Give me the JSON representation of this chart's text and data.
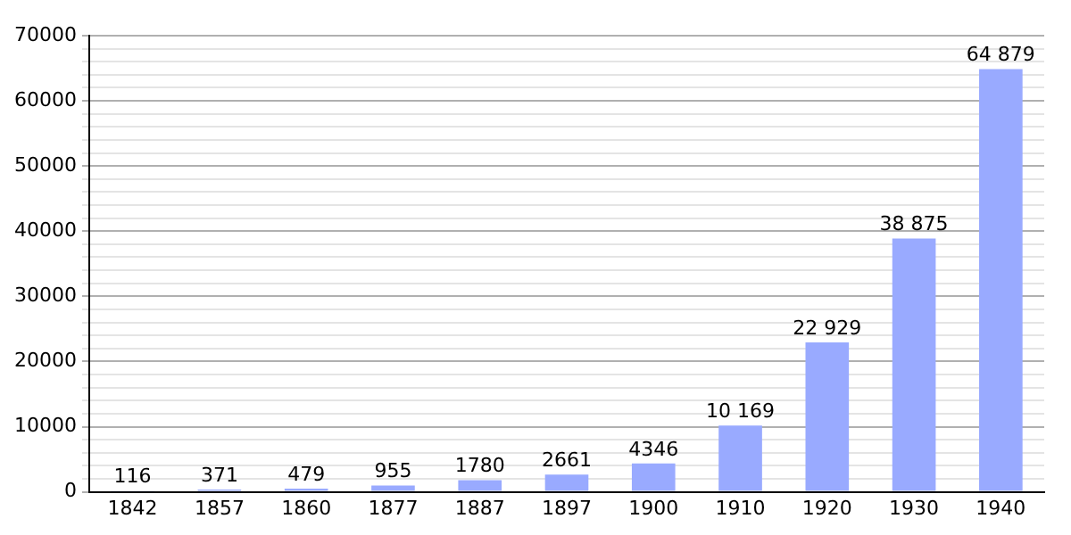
{
  "chart_data": {
    "type": "bar",
    "categories": [
      "1842",
      "1857",
      "1860",
      "1877",
      "1887",
      "1897",
      "1900",
      "1910",
      "1920",
      "1930",
      "1940"
    ],
    "values": [
      116,
      371,
      479,
      955,
      1780,
      2661,
      4346,
      10169,
      22929,
      38875,
      64879
    ],
    "value_labels": [
      "116",
      "371",
      "479",
      "955",
      "1780",
      "2661",
      "4346",
      "10 169",
      "22 929",
      "38 875",
      "64 879"
    ],
    "color": "#99aaff",
    "ylim": [
      0,
      70000
    ],
    "yticks": [
      0,
      {
        "value": 2000,
        "label": null
      },
      {
        "value": 4000,
        "label": null
      },
      {
        "value": 6000,
        "label": null
      },
      {
        "value": 8000,
        "label": null
      },
      10000,
      {
        "value": 12000,
        "label": null
      },
      {
        "value": 14000,
        "label": null
      },
      {
        "value": 16000,
        "label": null
      },
      {
        "value": 18000,
        "label": null
      },
      20000,
      {
        "value": 22000,
        "label": null
      },
      {
        "value": 24000,
        "label": null
      },
      {
        "value": 26000,
        "label": null
      },
      {
        "value": 28000,
        "label": null
      },
      30000,
      {
        "value": 32000,
        "label": null
      },
      {
        "value": 34000,
        "label": null
      },
      {
        "value": 36000,
        "label": null
      },
      {
        "value": 38000,
        "label": null
      },
      40000,
      {
        "value": 42000,
        "label": null
      },
      {
        "value": 44000,
        "label": null
      },
      {
        "value": 46000,
        "label": null
      },
      {
        "value": 48000,
        "label": null
      },
      50000,
      {
        "value": 52000,
        "label": null
      },
      {
        "value": 54000,
        "label": null
      },
      {
        "value": 56000,
        "label": null
      },
      {
        "value": 58000,
        "label": null
      },
      60000,
      {
        "value": 62000,
        "label": null
      },
      {
        "value": 64000,
        "label": null
      },
      {
        "value": 66000,
        "label": null
      },
      {
        "value": 68000,
        "label": null
      },
      70000
    ],
    "grid": "y"
  }
}
